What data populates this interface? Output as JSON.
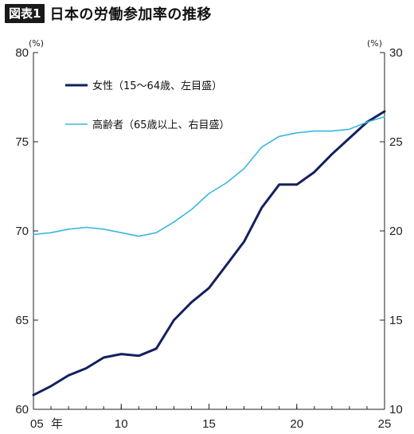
{
  "header": {
    "badge": "図表1",
    "title": "日本の労働参加率の推移"
  },
  "chart_data": {
    "type": "line",
    "x": [
      2005,
      2006,
      2007,
      2008,
      2009,
      2010,
      2011,
      2012,
      2013,
      2014,
      2015,
      2016,
      2017,
      2018,
      2019,
      2020,
      2021,
      2022,
      2023,
      2024,
      2025
    ],
    "x_ticks": [
      {
        "value": 2005,
        "label": "05"
      },
      {
        "value": 2010,
        "label": "10"
      },
      {
        "value": 2015,
        "label": "15"
      },
      {
        "value": 2020,
        "label": "20"
      },
      {
        "value": 2025,
        "label": "25"
      }
    ],
    "x_unit": "年",
    "xlim": [
      2005,
      2025
    ],
    "y_left": {
      "unit": "(%)",
      "ylim": [
        60,
        80
      ],
      "ticks": [
        60,
        65,
        70,
        75,
        80
      ]
    },
    "y_right": {
      "unit": "(%)",
      "ylim": [
        10,
        30
      ],
      "ticks": [
        10,
        15,
        20,
        25,
        30
      ]
    },
    "series": [
      {
        "name": "女性（15～64歳、左目盛）",
        "axis": "left",
        "color": "#14205e",
        "values": [
          60.8,
          61.3,
          61.9,
          62.3,
          62.9,
          63.1,
          63.0,
          63.4,
          65.0,
          66.0,
          66.8,
          68.1,
          69.4,
          71.3,
          72.6,
          72.6,
          73.3,
          74.3,
          75.2,
          76.1,
          76.7
        ]
      },
      {
        "name": "高齢者（65歳以上、右目盛）",
        "axis": "right",
        "color": "#38b8dd",
        "values": [
          19.8,
          19.9,
          20.1,
          20.2,
          20.1,
          19.9,
          19.7,
          19.9,
          20.5,
          21.2,
          22.1,
          22.7,
          23.5,
          24.7,
          25.3,
          25.5,
          25.6,
          25.6,
          25.7,
          26.1,
          26.4
        ]
      }
    ],
    "grid": false,
    "legend_position": "top-left"
  }
}
